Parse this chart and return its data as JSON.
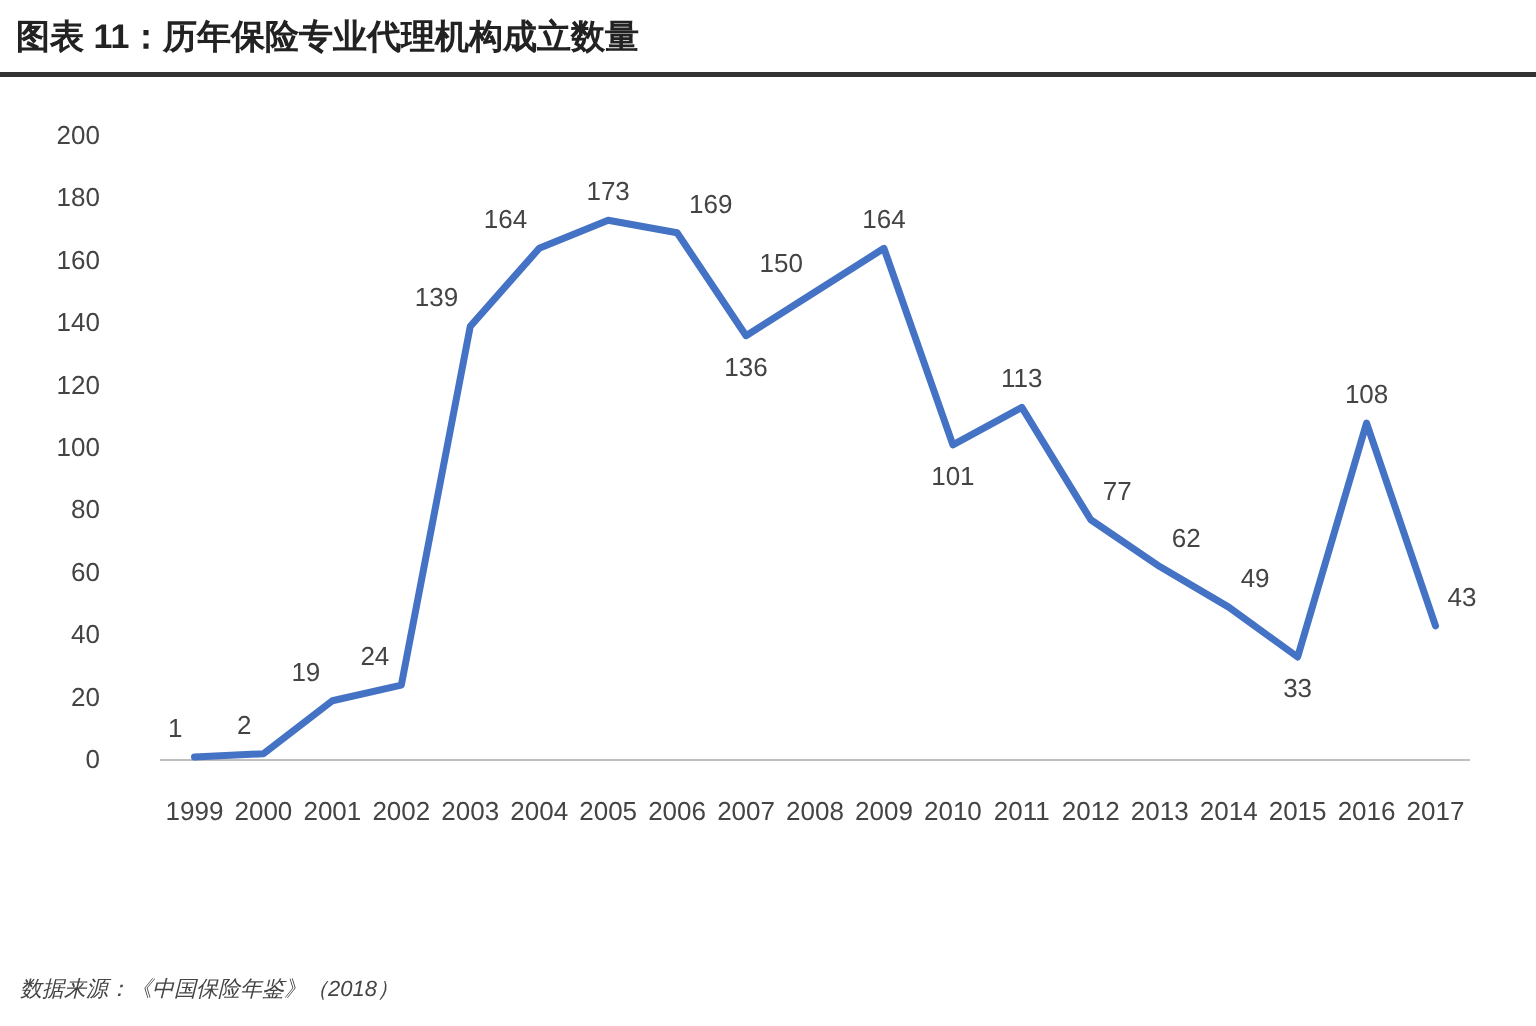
{
  "chart_data": {
    "type": "line",
    "title": "图表 11：历年保险专业代理机构成立数量",
    "categories": [
      "1999",
      "2000",
      "2001",
      "2002",
      "2003",
      "2004",
      "2005",
      "2006",
      "2007",
      "2008",
      "2009",
      "2010",
      "2011",
      "2012",
      "2013",
      "2014",
      "2015",
      "2016",
      "2017"
    ],
    "values": [
      1,
      2,
      19,
      24,
      139,
      164,
      173,
      169,
      136,
      150,
      164,
      101,
      113,
      77,
      62,
      49,
      33,
      108,
      43
    ],
    "color": "#4472c4",
    "ylim": [
      0,
      200
    ],
    "yticks": [
      0,
      20,
      40,
      60,
      80,
      100,
      120,
      140,
      160,
      180,
      200
    ],
    "data_labels": true,
    "grid": false,
    "annotations": [
      "数据来源：《中国保险年鉴》（2018）"
    ]
  }
}
